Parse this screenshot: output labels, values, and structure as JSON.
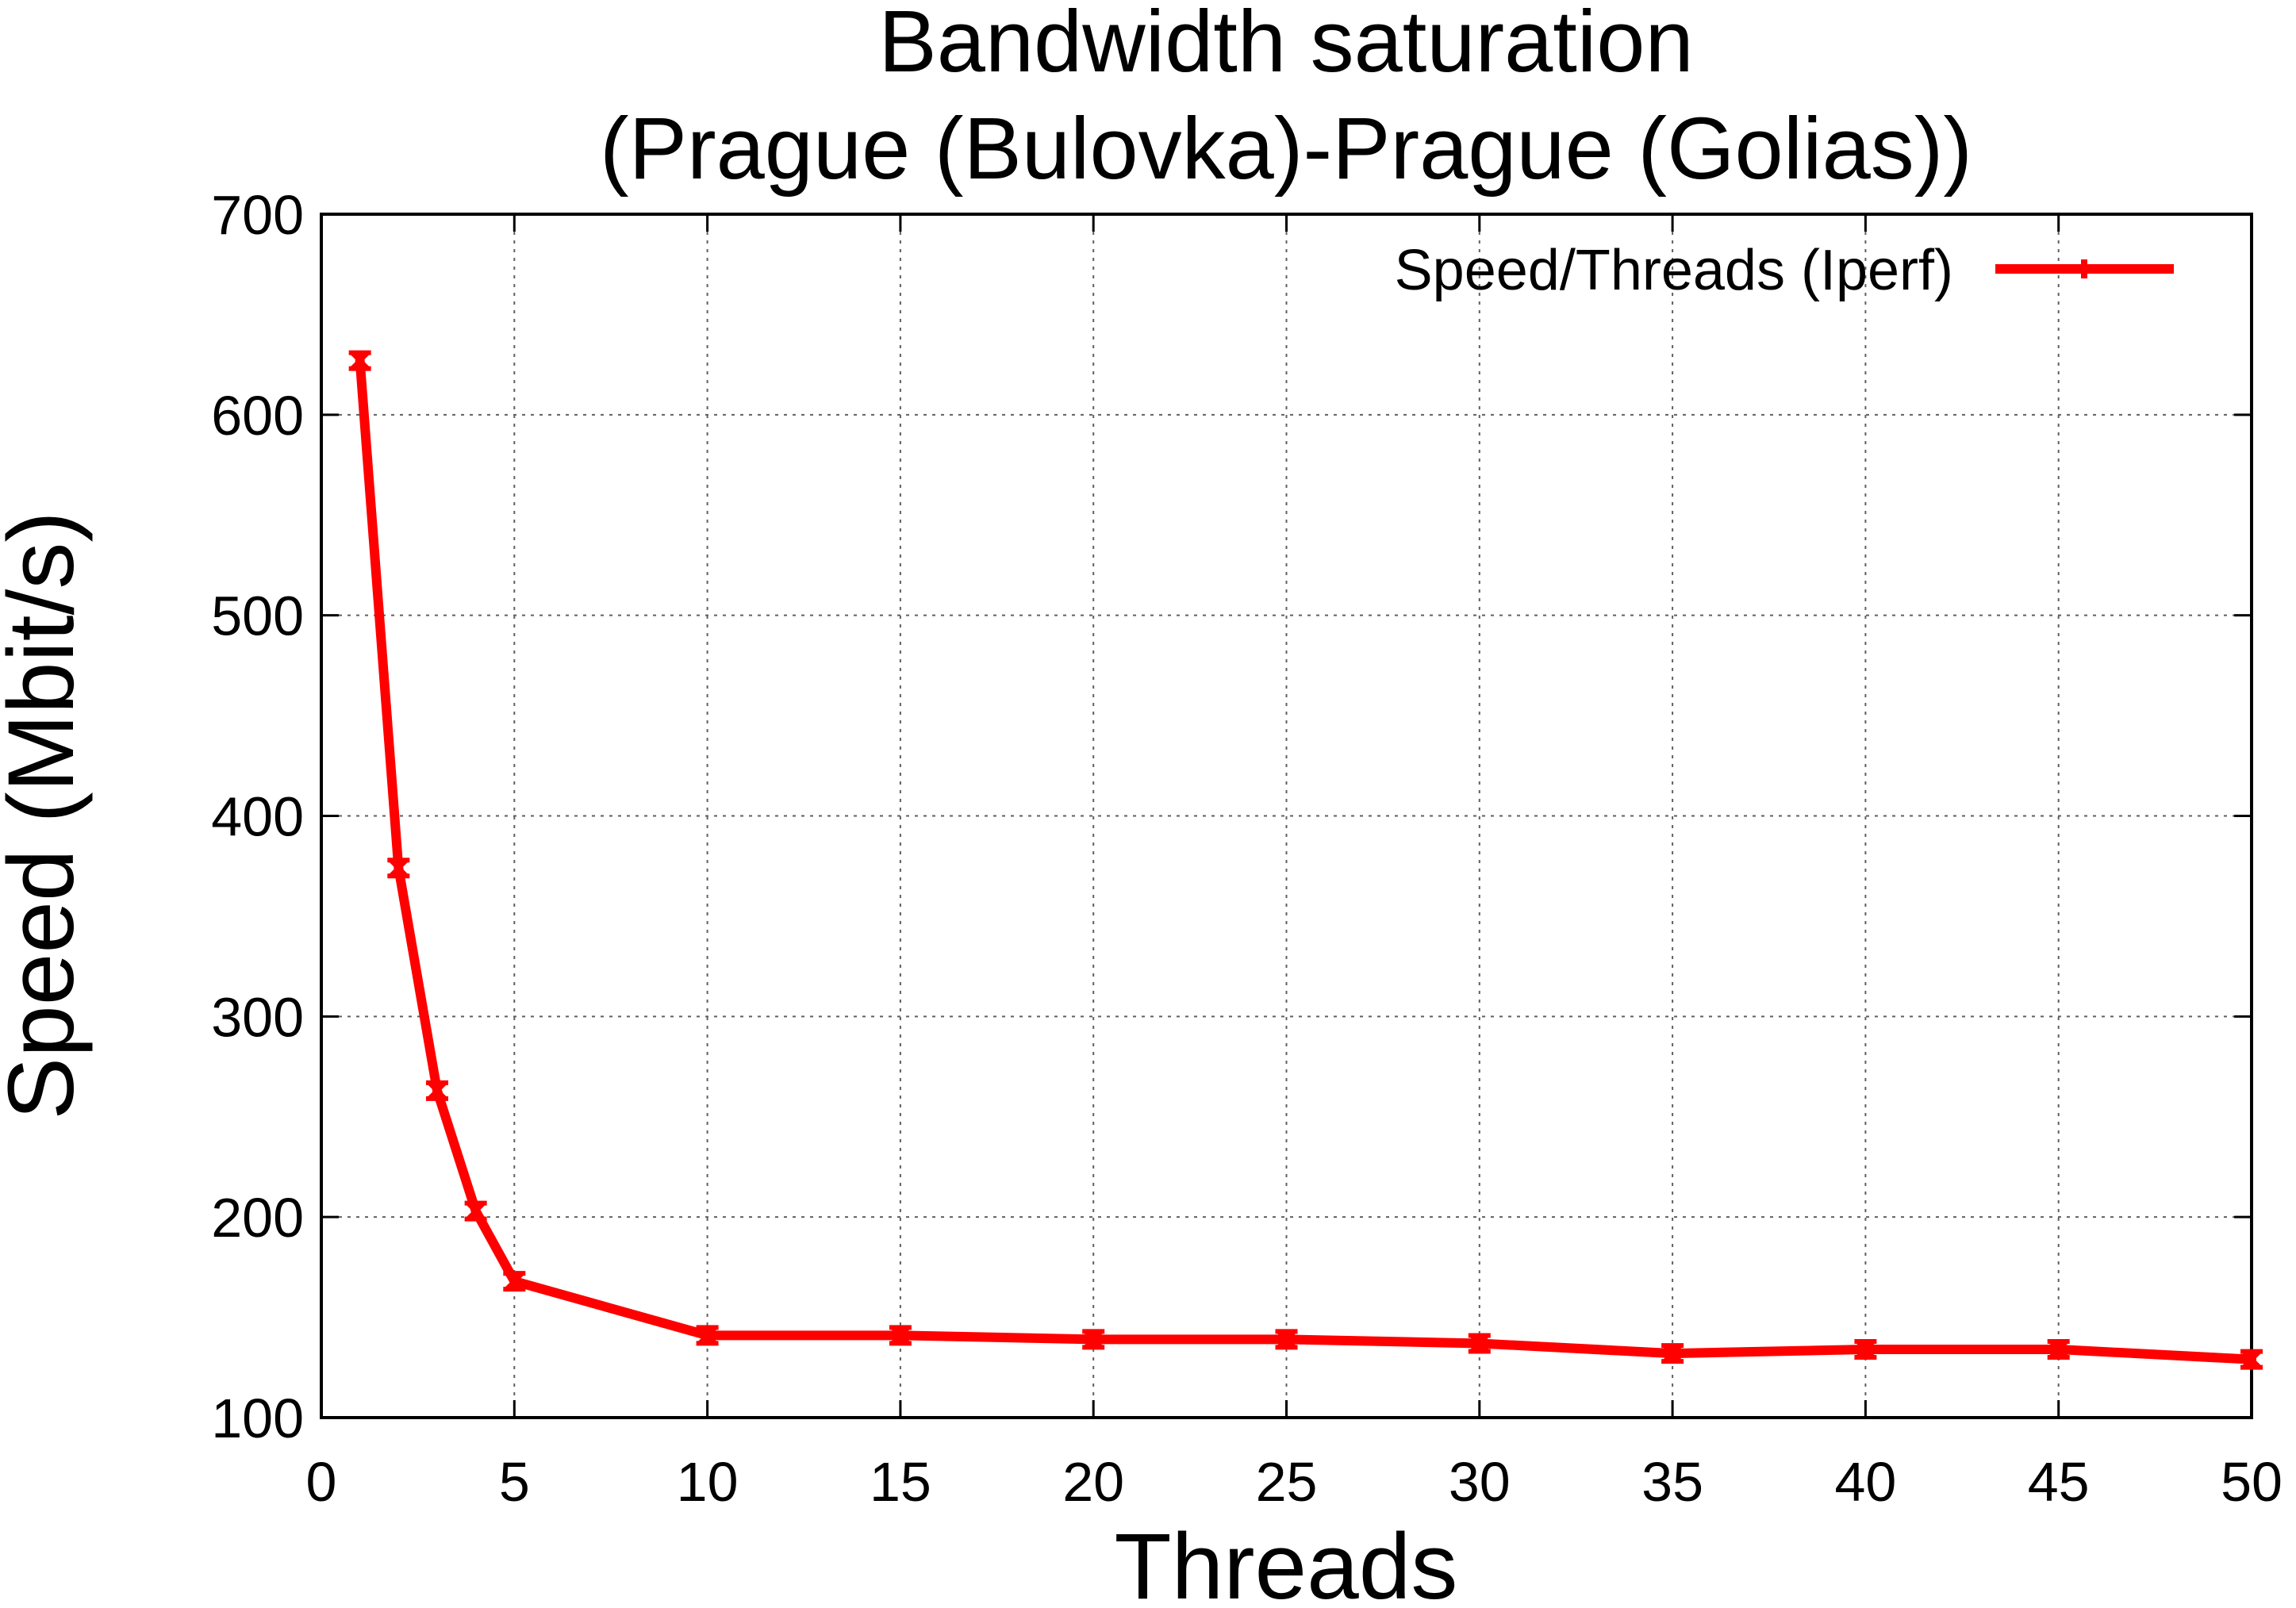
{
  "chart_data": {
    "type": "line",
    "title_line1": "Bandwidth saturation",
    "title_line2": "(Prague (Bulovka)-Prague (Golias))",
    "xlabel": "Threads",
    "ylabel": "Speed (Mbit/s)",
    "xlim": [
      0,
      50
    ],
    "ylim": [
      100,
      700
    ],
    "xticks": [
      "0",
      "5",
      "10",
      "15",
      "20",
      "25",
      "30",
      "35",
      "40",
      "45",
      "50"
    ],
    "yticks": [
      "100",
      "200",
      "300",
      "400",
      "500",
      "600",
      "700"
    ],
    "grid": true,
    "legend_position": "top-right",
    "series": [
      {
        "name": "Speed/Threads (Iperf)",
        "color": "#ff0000",
        "marker": "error-bar-cross",
        "x": [
          1,
          2,
          3,
          4,
          5,
          10,
          15,
          20,
          25,
          30,
          35,
          40,
          45,
          50
        ],
        "y": [
          627,
          374,
          263,
          203,
          168,
          141,
          141,
          139,
          139,
          137,
          132,
          134,
          134,
          129
        ]
      }
    ]
  }
}
